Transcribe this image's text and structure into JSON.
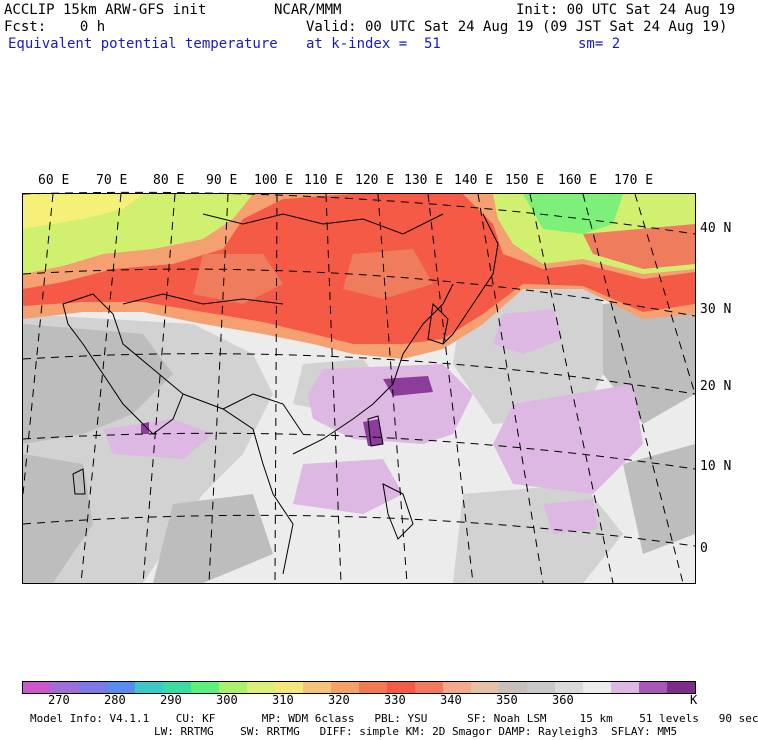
{
  "header": {
    "model_line": "ACCLIP 15km ARW-GFS init",
    "org": "NCAR/MMM",
    "init": "Init: 00 UTC Sat 24 Aug 19",
    "fcst": "Fcst:    0 h",
    "valid": "Valid: 00 UTC Sat 24 Aug 19 (09 JST Sat 24 Aug 19)",
    "field": "Equivalent potential temperature",
    "level": "at k-index =  51",
    "smooth": "sm= 2"
  },
  "map": {
    "lon_labels": [
      "60 E",
      "70 E",
      "80 E",
      "90 E",
      "100 E",
      "110 E",
      "120 E",
      "130 E",
      "140 E",
      "150 E",
      "160 E",
      "170 E"
    ],
    "lat_labels": [
      "40 N",
      "30 N",
      "20 N",
      "10 N",
      "0"
    ]
  },
  "colors": {
    "purple_light": "#dcb8e2",
    "purple_mid": "#c08ed0",
    "purple_dark": "#8c3c9a",
    "gray_dark": "#bdbdbd",
    "gray_mid": "#d2d2d2",
    "gray_light": "#ececec",
    "orange": "#f4a070",
    "red": "#f45a46",
    "salmon": "#f07c5e",
    "yellow_green": "#d2f070",
    "green": "#7cf078",
    "yellow": "#f4f078"
  },
  "colorbar": {
    "swatches": [
      "#cc55cc",
      "#9f6ed9",
      "#7b78e8",
      "#5a8cef",
      "#3cc8c8",
      "#3cdca0",
      "#5cf07c",
      "#aaf06a",
      "#dcf078",
      "#f4e878",
      "#f4c47c",
      "#f4a066",
      "#f47854",
      "#f45a46",
      "#f4785e",
      "#f4a88c",
      "#e8c0a8",
      "#c8c0b8",
      "#c8c8c8",
      "#dadada",
      "#ececec",
      "#dcb8e2",
      "#a858b8",
      "#7c2c8a"
    ],
    "labels": [
      "270",
      "280",
      "290",
      "300",
      "310",
      "320",
      "330",
      "340",
      "350",
      "360",
      "K"
    ]
  },
  "model_info": {
    "line1": "Model Info: V4.1.1    CU: KF       MP: WDM 6class   PBL: YSU      SF: Noah LSM     15 km    51 levels   90 sec",
    "line2": "LW: RRTMG    SW: RRTMG   DIFF: simple KM: 2D Smagor DAMP: Rayleigh3  SFLAY: MM5"
  }
}
